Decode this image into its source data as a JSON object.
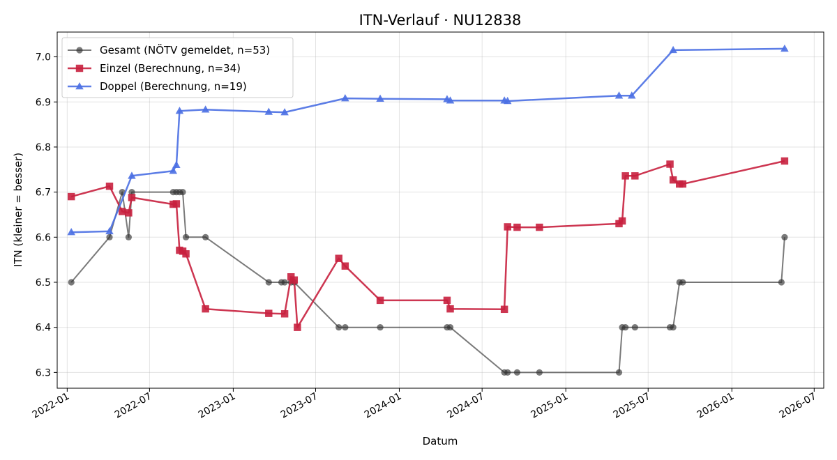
{
  "chart_data": {
    "type": "line",
    "title": "ITN-Verlauf · NU12838",
    "xlabel": "Datum",
    "ylabel": "ITN  (kleiner = besser)",
    "xlim": [
      "2021-12-10",
      "2026-07-22"
    ],
    "ylim": [
      6.265,
      7.055
    ],
    "x_ticks": [
      "2022-01",
      "2022-07",
      "2023-01",
      "2023-07",
      "2024-01",
      "2024-07",
      "2025-01",
      "2025-07",
      "2026-01",
      "2026-07"
    ],
    "y_ticks": [
      6.3,
      6.4,
      6.5,
      6.6,
      6.7,
      6.8,
      6.9,
      7.0
    ],
    "grid": true,
    "legend_position": "top-left",
    "series": [
      {
        "name": "Gesamt (NÖTV gemeldet, n=53)",
        "color": "#333333",
        "marker": "circle",
        "points": [
          [
            "2022-01-10",
            6.5
          ],
          [
            "2022-04-04",
            6.6
          ],
          [
            "2022-05-02",
            6.7
          ],
          [
            "2022-05-16",
            6.6
          ],
          [
            "2022-05-23",
            6.7
          ],
          [
            "2022-08-22",
            6.7
          ],
          [
            "2022-08-29",
            6.7
          ],
          [
            "2022-09-05",
            6.7
          ],
          [
            "2022-09-12",
            6.7
          ],
          [
            "2022-09-19",
            6.6
          ],
          [
            "2022-11-01",
            6.6
          ],
          [
            "2023-03-20",
            6.5
          ],
          [
            "2023-04-17",
            6.5
          ],
          [
            "2023-04-24",
            6.5
          ],
          [
            "2023-05-08",
            6.5
          ],
          [
            "2023-05-15",
            6.5
          ],
          [
            "2023-08-21",
            6.4
          ],
          [
            "2023-09-04",
            6.4
          ],
          [
            "2023-11-20",
            6.4
          ],
          [
            "2024-04-15",
            6.4
          ],
          [
            "2024-04-22",
            6.4
          ],
          [
            "2024-08-19",
            6.3
          ],
          [
            "2024-08-26",
            6.3
          ],
          [
            "2024-09-16",
            6.3
          ],
          [
            "2024-11-04",
            6.3
          ],
          [
            "2025-04-28",
            6.3
          ],
          [
            "2025-05-05",
            6.4
          ],
          [
            "2025-05-12",
            6.4
          ],
          [
            "2025-06-02",
            6.4
          ],
          [
            "2025-08-18",
            6.4
          ],
          [
            "2025-08-25",
            6.4
          ],
          [
            "2025-09-08",
            6.5
          ],
          [
            "2025-09-15",
            6.5
          ],
          [
            "2026-04-20",
            6.5
          ],
          [
            "2026-04-27",
            6.6
          ]
        ]
      },
      {
        "name": "Einzel (Berechnung, n=34)",
        "color": "#c8203e",
        "marker": "square",
        "points": [
          [
            "2022-01-10",
            6.69
          ],
          [
            "2022-04-04",
            6.713
          ],
          [
            "2022-05-02",
            6.657
          ],
          [
            "2022-05-16",
            6.654
          ],
          [
            "2022-05-23",
            6.688
          ],
          [
            "2022-08-22",
            6.673
          ],
          [
            "2022-08-29",
            6.674
          ],
          [
            "2022-09-05",
            6.571
          ],
          [
            "2022-09-12",
            6.569
          ],
          [
            "2022-09-19",
            6.563
          ],
          [
            "2022-11-01",
            6.441
          ],
          [
            "2023-03-20",
            6.431
          ],
          [
            "2023-04-24",
            6.43
          ],
          [
            "2023-05-08",
            6.512
          ],
          [
            "2023-05-15",
            6.505
          ],
          [
            "2023-05-22",
            6.4
          ],
          [
            "2023-08-21",
            6.553
          ],
          [
            "2023-09-04",
            6.536
          ],
          [
            "2023-11-20",
            6.46
          ],
          [
            "2024-04-15",
            6.46
          ],
          [
            "2024-04-22",
            6.441
          ],
          [
            "2024-08-19",
            6.44
          ],
          [
            "2024-08-26",
            6.623
          ],
          [
            "2024-09-16",
            6.622
          ],
          [
            "2024-11-04",
            6.622
          ],
          [
            "2025-04-28",
            6.63
          ],
          [
            "2025-05-05",
            6.636
          ],
          [
            "2025-05-12",
            6.736
          ],
          [
            "2025-06-02",
            6.736
          ],
          [
            "2025-08-18",
            6.762
          ],
          [
            "2025-08-25",
            6.727
          ],
          [
            "2025-09-08",
            6.718
          ],
          [
            "2025-09-15",
            6.718
          ],
          [
            "2026-04-27",
            6.769
          ]
        ]
      },
      {
        "name": "Doppel (Berechnung, n=19)",
        "color": "#4a6fe3",
        "marker": "triangle",
        "points": [
          [
            "2022-01-10",
            6.611
          ],
          [
            "2022-04-04",
            6.613
          ],
          [
            "2022-05-23",
            6.736
          ],
          [
            "2022-08-22",
            6.747
          ],
          [
            "2022-08-29",
            6.76
          ],
          [
            "2022-09-05",
            6.88
          ],
          [
            "2022-11-01",
            6.883
          ],
          [
            "2023-03-20",
            6.878
          ],
          [
            "2023-04-24",
            6.877
          ],
          [
            "2023-09-04",
            6.908
          ],
          [
            "2023-11-20",
            6.907
          ],
          [
            "2024-04-15",
            6.906
          ],
          [
            "2024-04-22",
            6.903
          ],
          [
            "2024-08-19",
            6.903
          ],
          [
            "2024-08-26",
            6.902
          ],
          [
            "2025-04-28",
            6.914
          ],
          [
            "2025-05-26",
            6.914
          ],
          [
            "2025-08-25",
            7.015
          ],
          [
            "2026-04-27",
            7.018
          ]
        ]
      }
    ]
  }
}
